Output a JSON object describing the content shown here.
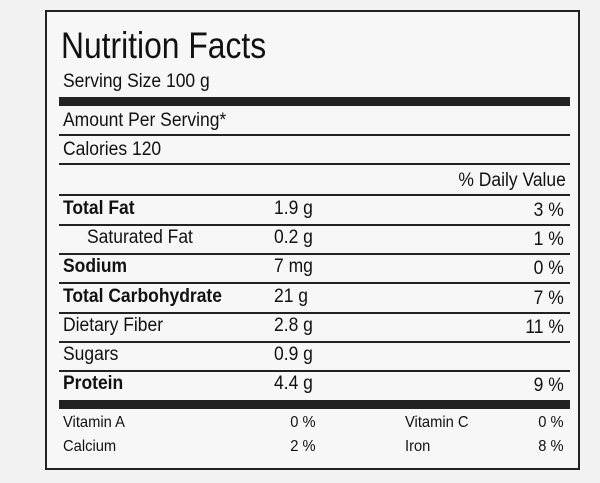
{
  "header": {
    "title": "Nutrition Facts",
    "serving_size": "Serving Size 100 g",
    "amount_per_serving": "Amount Per Serving*",
    "calories": "Calories 120",
    "daily_value_heading": "% Daily Value"
  },
  "nutrients": [
    {
      "name": "Total Fat",
      "amount": "1.9 g",
      "daily_value": "3 %",
      "bold": true
    },
    {
      "name": "Saturated Fat",
      "amount": "0.2 g",
      "daily_value": "1 %",
      "indent": true
    },
    {
      "name": "Sodium",
      "amount": "7 mg",
      "daily_value": "0 %",
      "bold": true
    },
    {
      "name": "Total Carbohydrate",
      "amount": "21 g",
      "daily_value": "7 %",
      "bold": true
    },
    {
      "name": "Dietary Fiber",
      "amount": "2.8 g",
      "daily_value": "11 %"
    },
    {
      "name": "Sugars",
      "amount": "0.9 g"
    },
    {
      "name": "Protein",
      "amount": "4.4 g",
      "daily_value": "9 %",
      "bold": true
    }
  ],
  "vitamins": [
    [
      {
        "name": "Vitamin A",
        "value": "0 %"
      },
      {
        "name": "Vitamin C",
        "value": "0 %"
      }
    ],
    [
      {
        "name": "Calcium",
        "value": "2 %"
      },
      {
        "name": "Iron",
        "value": "8 %"
      }
    ]
  ]
}
